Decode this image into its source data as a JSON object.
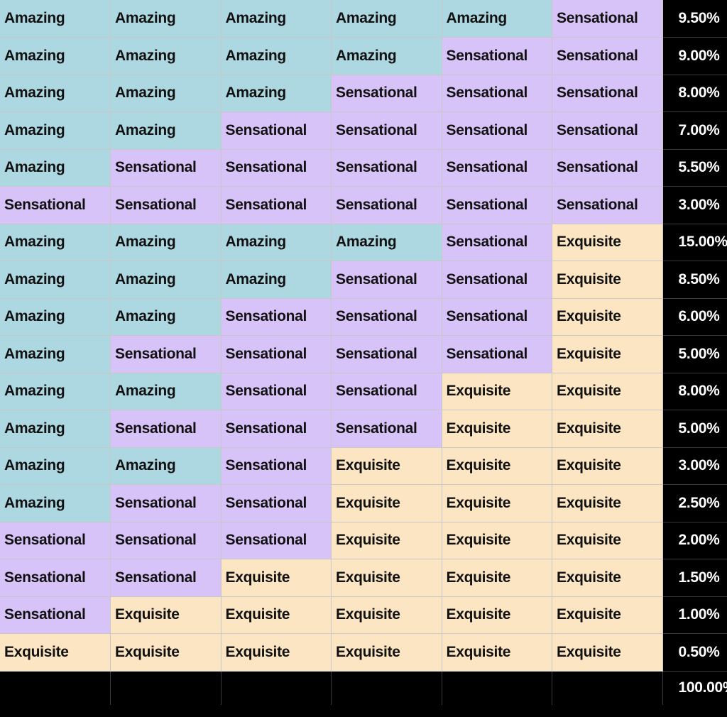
{
  "colors": {
    "Amazing": "#add8e1",
    "Sensational": "#d7c3f8",
    "Exquisite": "#fbe5c2"
  },
  "rows": [
    {
      "cells": [
        "Amazing",
        "Amazing",
        "Amazing",
        "Amazing",
        "Amazing",
        "Sensational"
      ],
      "pct": "9.50%"
    },
    {
      "cells": [
        "Amazing",
        "Amazing",
        "Amazing",
        "Amazing",
        "Sensational",
        "Sensational"
      ],
      "pct": "9.00%"
    },
    {
      "cells": [
        "Amazing",
        "Amazing",
        "Amazing",
        "Sensational",
        "Sensational",
        "Sensational"
      ],
      "pct": "8.00%"
    },
    {
      "cells": [
        "Amazing",
        "Amazing",
        "Sensational",
        "Sensational",
        "Sensational",
        "Sensational"
      ],
      "pct": "7.00%"
    },
    {
      "cells": [
        "Amazing",
        "Sensational",
        "Sensational",
        "Sensational",
        "Sensational",
        "Sensational"
      ],
      "pct": "5.50%"
    },
    {
      "cells": [
        "Sensational",
        "Sensational",
        "Sensational",
        "Sensational",
        "Sensational",
        "Sensational"
      ],
      "pct": "3.00%"
    },
    {
      "cells": [
        "Amazing",
        "Amazing",
        "Amazing",
        "Amazing",
        "Sensational",
        "Exquisite"
      ],
      "pct": "15.00%"
    },
    {
      "cells": [
        "Amazing",
        "Amazing",
        "Amazing",
        "Sensational",
        "Sensational",
        "Exquisite"
      ],
      "pct": "8.50%"
    },
    {
      "cells": [
        "Amazing",
        "Amazing",
        "Sensational",
        "Sensational",
        "Sensational",
        "Exquisite"
      ],
      "pct": "6.00%"
    },
    {
      "cells": [
        "Amazing",
        "Sensational",
        "Sensational",
        "Sensational",
        "Sensational",
        "Exquisite"
      ],
      "pct": "5.00%"
    },
    {
      "cells": [
        "Amazing",
        "Amazing",
        "Sensational",
        "Sensational",
        "Exquisite",
        "Exquisite"
      ],
      "pct": "8.00%"
    },
    {
      "cells": [
        "Amazing",
        "Sensational",
        "Sensational",
        "Sensational",
        "Exquisite",
        "Exquisite"
      ],
      "pct": "5.00%"
    },
    {
      "cells": [
        "Amazing",
        "Amazing",
        "Sensational",
        "Exquisite",
        "Exquisite",
        "Exquisite"
      ],
      "pct": "3.00%"
    },
    {
      "cells": [
        "Amazing",
        "Sensational",
        "Sensational",
        "Exquisite",
        "Exquisite",
        "Exquisite"
      ],
      "pct": "2.50%"
    },
    {
      "cells": [
        "Sensational",
        "Sensational",
        "Sensational",
        "Exquisite",
        "Exquisite",
        "Exquisite"
      ],
      "pct": "2.00%"
    },
    {
      "cells": [
        "Sensational",
        "Sensational",
        "Exquisite",
        "Exquisite",
        "Exquisite",
        "Exquisite"
      ],
      "pct": "1.50%"
    },
    {
      "cells": [
        "Sensational",
        "Exquisite",
        "Exquisite",
        "Exquisite",
        "Exquisite",
        "Exquisite"
      ],
      "pct": "1.00%"
    },
    {
      "cells": [
        "Exquisite",
        "Exquisite",
        "Exquisite",
        "Exquisite",
        "Exquisite",
        "Exquisite"
      ],
      "pct": "0.50%"
    }
  ],
  "total": {
    "pct": "100.00%"
  }
}
